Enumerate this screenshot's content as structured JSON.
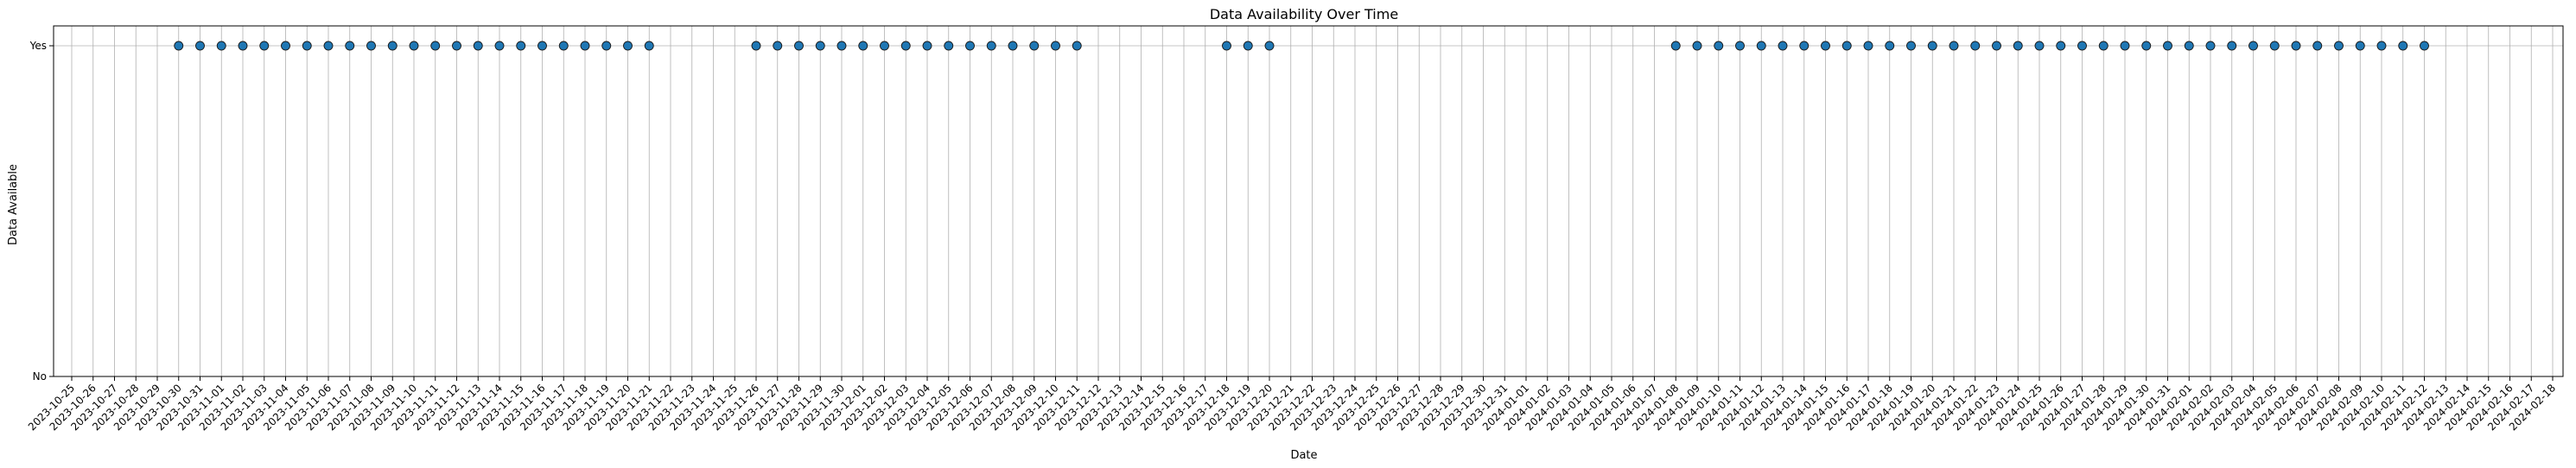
{
  "chart_data": {
    "type": "scatter",
    "title": "Data Availability Over Time",
    "xlabel": "Date",
    "ylabel": "Data Available",
    "y_tick_labels": [
      "No",
      "Yes"
    ],
    "ylim": [
      0,
      1
    ],
    "x_start": "2023-10-25",
    "x_end": "2024-02-18",
    "x_tick_labels": [
      "2023-10-25",
      "2023-10-26",
      "2023-10-27",
      "2023-10-28",
      "2023-10-29",
      "2023-10-30",
      "2023-10-31",
      "2023-11-01",
      "2023-11-02",
      "2023-11-03",
      "2023-11-04",
      "2023-11-05",
      "2023-11-06",
      "2023-11-07",
      "2023-11-08",
      "2023-11-09",
      "2023-11-10",
      "2023-11-11",
      "2023-11-12",
      "2023-11-13",
      "2023-11-14",
      "2023-11-15",
      "2023-11-16",
      "2023-11-17",
      "2023-11-18",
      "2023-11-19",
      "2023-11-20",
      "2023-11-21",
      "2023-11-22",
      "2023-11-23",
      "2023-11-24",
      "2023-11-25",
      "2023-11-26",
      "2023-11-27",
      "2023-11-28",
      "2023-11-29",
      "2023-11-30",
      "2023-12-01",
      "2023-12-02",
      "2023-12-03",
      "2023-12-04",
      "2023-12-05",
      "2023-12-06",
      "2023-12-07",
      "2023-12-08",
      "2023-12-09",
      "2023-12-10",
      "2023-12-11",
      "2023-12-12",
      "2023-12-13",
      "2023-12-14",
      "2023-12-15",
      "2023-12-16",
      "2023-12-17",
      "2023-12-18",
      "2023-12-19",
      "2023-12-20",
      "2023-12-21",
      "2023-12-22",
      "2023-12-23",
      "2023-12-24",
      "2023-12-25",
      "2023-12-26",
      "2023-12-27",
      "2023-12-28",
      "2023-12-29",
      "2023-12-30",
      "2023-12-31",
      "2024-01-01",
      "2024-01-02",
      "2024-01-03",
      "2024-01-04",
      "2024-01-05",
      "2024-01-06",
      "2024-01-07",
      "2024-01-08",
      "2024-01-09",
      "2024-01-10",
      "2024-01-11",
      "2024-01-12",
      "2024-01-13",
      "2024-01-14",
      "2024-01-15",
      "2024-01-16",
      "2024-01-17",
      "2024-01-18",
      "2024-01-19",
      "2024-01-20",
      "2024-01-21",
      "2024-01-22",
      "2024-01-23",
      "2024-01-24",
      "2024-01-25",
      "2024-01-26",
      "2024-01-27",
      "2024-01-28",
      "2024-01-29",
      "2024-01-30",
      "2024-01-31",
      "2024-02-01",
      "2024-02-02",
      "2024-02-03",
      "2024-02-04",
      "2024-02-05",
      "2024-02-06",
      "2024-02-07",
      "2024-02-08",
      "2024-02-09",
      "2024-02-10",
      "2024-02-11",
      "2024-02-12",
      "2024-02-13",
      "2024-02-14",
      "2024-02-15",
      "2024-02-16",
      "2024-02-17",
      "2024-02-18"
    ],
    "points": [
      {
        "x": "2023-10-30",
        "y": 1
      },
      {
        "x": "2023-10-31",
        "y": 1
      },
      {
        "x": "2023-11-01",
        "y": 1
      },
      {
        "x": "2023-11-02",
        "y": 1
      },
      {
        "x": "2023-11-03",
        "y": 1
      },
      {
        "x": "2023-11-04",
        "y": 1
      },
      {
        "x": "2023-11-05",
        "y": 1
      },
      {
        "x": "2023-11-06",
        "y": 1
      },
      {
        "x": "2023-11-07",
        "y": 1
      },
      {
        "x": "2023-11-08",
        "y": 1
      },
      {
        "x": "2023-11-09",
        "y": 1
      },
      {
        "x": "2023-11-10",
        "y": 1
      },
      {
        "x": "2023-11-11",
        "y": 1
      },
      {
        "x": "2023-11-12",
        "y": 1
      },
      {
        "x": "2023-11-13",
        "y": 1
      },
      {
        "x": "2023-11-14",
        "y": 1
      },
      {
        "x": "2023-11-15",
        "y": 1
      },
      {
        "x": "2023-11-16",
        "y": 1
      },
      {
        "x": "2023-11-17",
        "y": 1
      },
      {
        "x": "2023-11-18",
        "y": 1
      },
      {
        "x": "2023-11-19",
        "y": 1
      },
      {
        "x": "2023-11-20",
        "y": 1
      },
      {
        "x": "2023-11-21",
        "y": 1
      },
      {
        "x": "2023-11-26",
        "y": 1
      },
      {
        "x": "2023-11-27",
        "y": 1
      },
      {
        "x": "2023-11-28",
        "y": 1
      },
      {
        "x": "2023-11-29",
        "y": 1
      },
      {
        "x": "2023-11-30",
        "y": 1
      },
      {
        "x": "2023-12-01",
        "y": 1
      },
      {
        "x": "2023-12-02",
        "y": 1
      },
      {
        "x": "2023-12-03",
        "y": 1
      },
      {
        "x": "2023-12-04",
        "y": 1
      },
      {
        "x": "2023-12-05",
        "y": 1
      },
      {
        "x": "2023-12-06",
        "y": 1
      },
      {
        "x": "2023-12-07",
        "y": 1
      },
      {
        "x": "2023-12-08",
        "y": 1
      },
      {
        "x": "2023-12-09",
        "y": 1
      },
      {
        "x": "2023-12-10",
        "y": 1
      },
      {
        "x": "2023-12-11",
        "y": 1
      },
      {
        "x": "2023-12-18",
        "y": 1
      },
      {
        "x": "2023-12-19",
        "y": 1
      },
      {
        "x": "2023-12-20",
        "y": 1
      },
      {
        "x": "2024-01-08",
        "y": 1
      },
      {
        "x": "2024-01-09",
        "y": 1
      },
      {
        "x": "2024-01-10",
        "y": 1
      },
      {
        "x": "2024-01-11",
        "y": 1
      },
      {
        "x": "2024-01-12",
        "y": 1
      },
      {
        "x": "2024-01-13",
        "y": 1
      },
      {
        "x": "2024-01-14",
        "y": 1
      },
      {
        "x": "2024-01-15",
        "y": 1
      },
      {
        "x": "2024-01-16",
        "y": 1
      },
      {
        "x": "2024-01-17",
        "y": 1
      },
      {
        "x": "2024-01-18",
        "y": 1
      },
      {
        "x": "2024-01-19",
        "y": 1
      },
      {
        "x": "2024-01-20",
        "y": 1
      },
      {
        "x": "2024-01-21",
        "y": 1
      },
      {
        "x": "2024-01-22",
        "y": 1
      },
      {
        "x": "2024-01-23",
        "y": 1
      },
      {
        "x": "2024-01-24",
        "y": 1
      },
      {
        "x": "2024-01-25",
        "y": 1
      },
      {
        "x": "2024-01-26",
        "y": 1
      },
      {
        "x": "2024-01-27",
        "y": 1
      },
      {
        "x": "2024-01-28",
        "y": 1
      },
      {
        "x": "2024-01-29",
        "y": 1
      },
      {
        "x": "2024-01-30",
        "y": 1
      },
      {
        "x": "2024-01-31",
        "y": 1
      },
      {
        "x": "2024-02-01",
        "y": 1
      },
      {
        "x": "2024-02-02",
        "y": 1
      },
      {
        "x": "2024-02-03",
        "y": 1
      },
      {
        "x": "2024-02-04",
        "y": 1
      },
      {
        "x": "2024-02-05",
        "y": 1
      },
      {
        "x": "2024-02-06",
        "y": 1
      },
      {
        "x": "2024-02-07",
        "y": 1
      },
      {
        "x": "2024-02-08",
        "y": 1
      },
      {
        "x": "2024-02-09",
        "y": 1
      },
      {
        "x": "2024-02-10",
        "y": 1
      },
      {
        "x": "2024-02-11",
        "y": 1
      },
      {
        "x": "2024-02-12",
        "y": 1
      }
    ],
    "grid": true,
    "marker_color": "#1f77b4",
    "marker_edge_color": "#1a1a1a",
    "grid_color": "#b0b0b0"
  }
}
